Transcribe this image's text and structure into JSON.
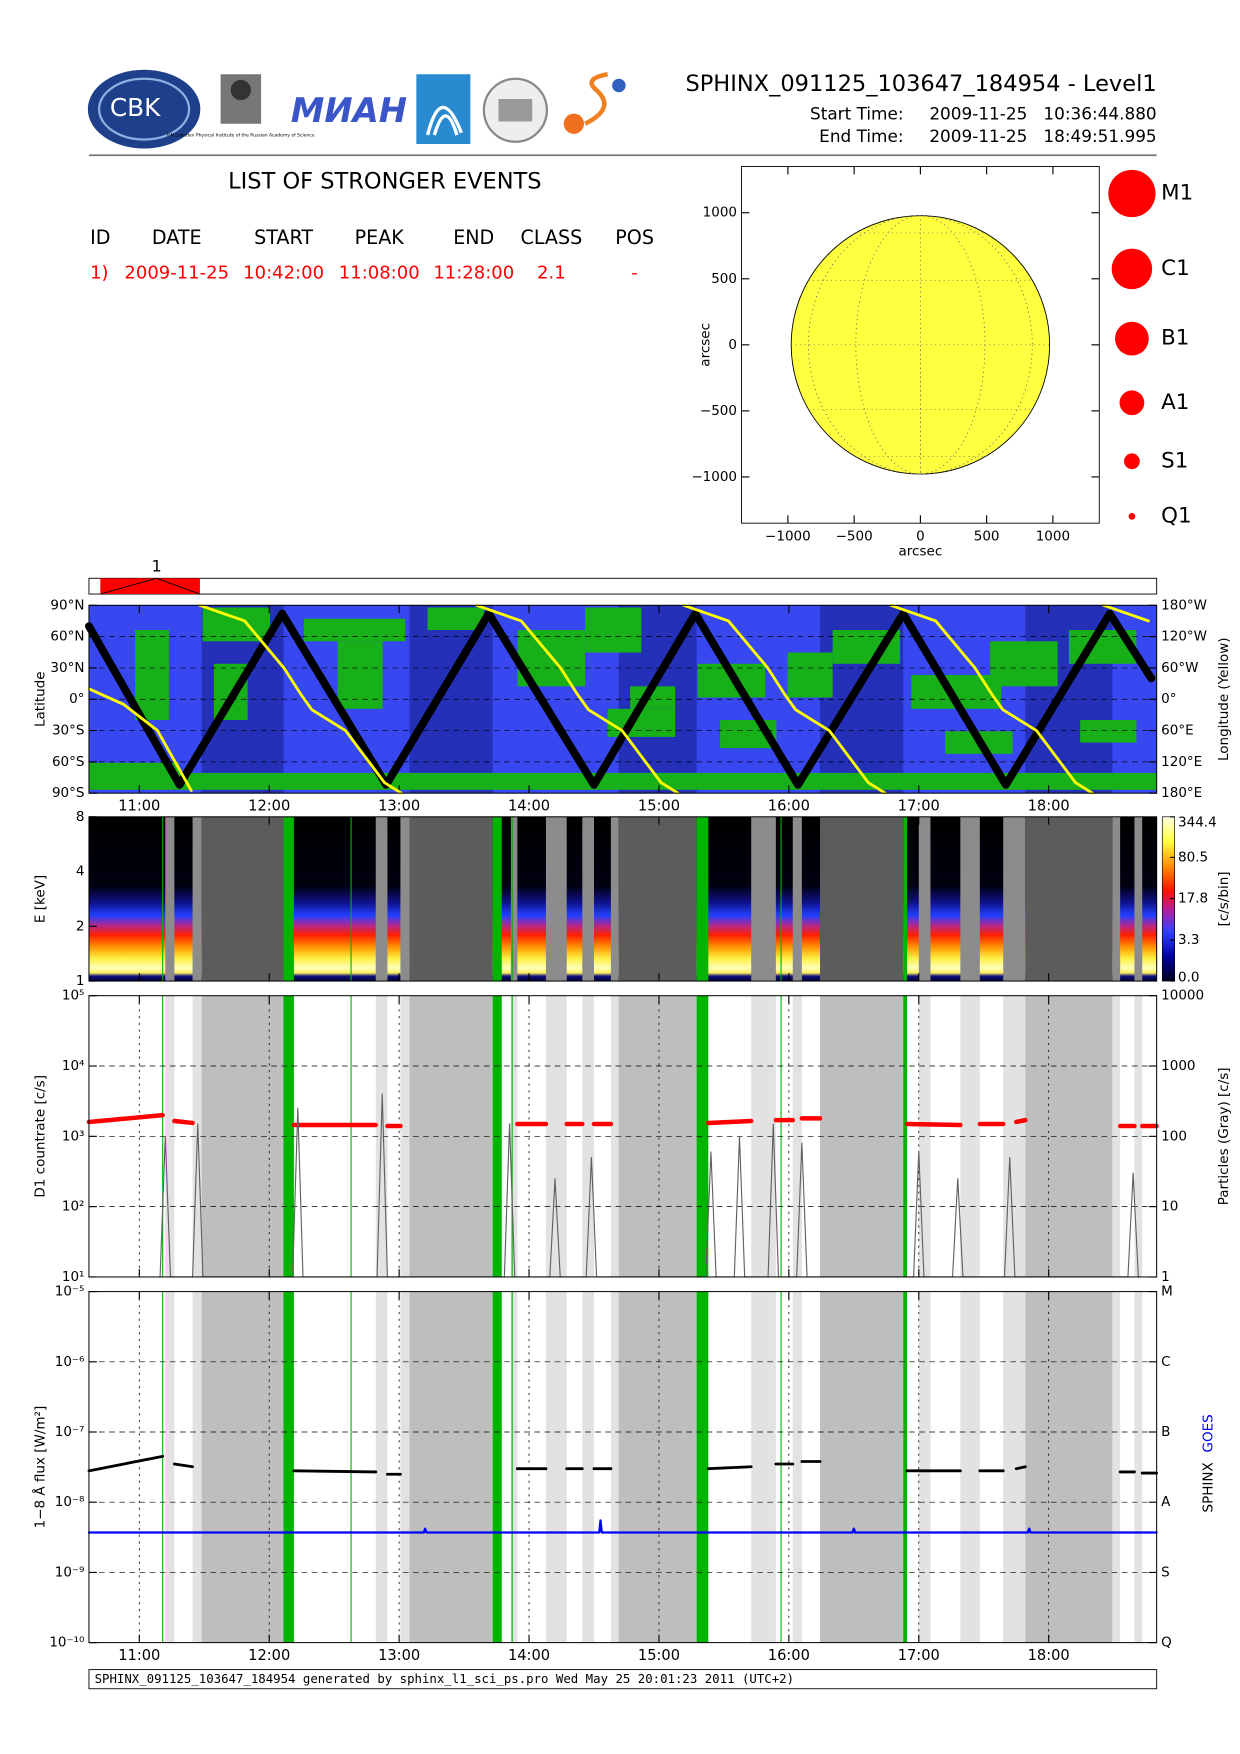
{
  "header": {
    "title": "SPHINX_091125_103647_184954 - Level1",
    "start_label": "Start Time:",
    "start_value": "2009-11-25   10:36:44.880",
    "end_label": "End Time:",
    "end_value": "2009-11-25   18:49:51.995"
  },
  "logos": {
    "cbk": "CBK",
    "lebedev": "P.N.Lebedev Physical Institute of the Russian Academy of Science",
    "mian": "МИАН"
  },
  "events": {
    "title": "LIST OF STRONGER EVENTS",
    "columns": [
      "ID",
      "DATE",
      "START",
      "PEAK",
      "END",
      "CLASS",
      "POS"
    ],
    "rows": [
      [
        "1)",
        "2009-11-25",
        "10:42:00",
        "11:08:00",
        "11:28:00",
        "2.1",
        "-"
      ]
    ],
    "color": "#ff0000"
  },
  "timeline": {
    "events": [
      {
        "label": "1",
        "start": 10.7,
        "peak": 11.1333,
        "end": 11.4667
      }
    ],
    "color": "#ff0000"
  },
  "time_coverage": {
    "light_gray": [
      [
        11.2,
        11.27
      ],
      [
        11.41,
        11.48
      ],
      [
        12.82,
        12.91
      ],
      [
        13.01,
        13.08
      ],
      [
        13.86,
        13.91
      ],
      [
        14.13,
        14.29
      ],
      [
        14.41,
        14.5
      ],
      [
        14.63,
        14.69
      ],
      [
        15.71,
        15.9
      ],
      [
        16.03,
        16.1
      ],
      [
        17.0,
        17.09
      ],
      [
        17.32,
        17.47
      ],
      [
        17.65,
        17.82
      ],
      [
        18.49,
        18.55
      ],
      [
        18.66,
        18.72
      ]
    ],
    "dark_gray": [
      [
        11.48,
        12.11
      ],
      [
        13.08,
        13.72
      ],
      [
        14.69,
        15.29
      ],
      [
        16.24,
        16.88
      ],
      [
        17.82,
        18.49
      ]
    ],
    "green": [
      [
        12.11,
        12.19
      ],
      [
        13.72,
        13.79
      ],
      [
        15.29,
        15.38
      ],
      [
        16.88,
        16.91
      ]
    ],
    "green_lines": [
      11.18,
      12.63,
      13.87,
      15.94
    ]
  },
  "chart_data": [
    {
      "type": "map",
      "xlabel": "arcsec",
      "ylabel": "arcsec",
      "xlim": [
        -1350,
        1350
      ],
      "ylim": [
        -1350,
        1350
      ],
      "xticks": [
        {
          "value": -1000,
          "label": "−1000"
        },
        {
          "value": -500,
          "label": "−500"
        },
        0,
        500,
        1000
      ],
      "yticks": [
        {
          "value": -1000,
          "label": "−1000"
        },
        {
          "value": -500,
          "label": "−500"
        },
        0,
        500,
        1000
      ],
      "sun_radius": 975,
      "color": "#ffff40",
      "classes": [
        "M1",
        "C1",
        "B1",
        "A1",
        "S1",
        "Q1"
      ],
      "class_color": "#ff0000"
    },
    {
      "type": "line",
      "ylabel": "Latitude",
      "y2label": "Longitude (Yellow)",
      "xlim": [
        10.6125,
        18.8311
      ],
      "xticks": [
        {
          "value": 11,
          "label": "11:00"
        },
        {
          "value": 12,
          "label": "12:00"
        },
        {
          "value": 13,
          "label": "13:00"
        },
        {
          "value": 14,
          "label": "14:00"
        },
        {
          "value": 15,
          "label": "15:00"
        },
        {
          "value": 16,
          "label": "16:00"
        },
        {
          "value": 17,
          "label": "17:00"
        },
        {
          "value": 18,
          "label": "18:00"
        }
      ],
      "ylim": [
        -90,
        90
      ],
      "yticks": [
        {
          "value": -90,
          "label": "90°S"
        },
        {
          "value": -60,
          "label": "60°S"
        },
        {
          "value": -30,
          "label": "30°S"
        },
        {
          "value": 0,
          "label": "0°"
        },
        {
          "value": 30,
          "label": "30°N"
        },
        {
          "value": 60,
          "label": "60°N"
        },
        {
          "value": 90,
          "label": "90°N"
        }
      ],
      "y2lim": [
        -180,
        180
      ],
      "y2ticks": [
        {
          "value": -180,
          "label": "180°E"
        },
        {
          "value": -120,
          "label": "120°E"
        },
        {
          "value": -60,
          "label": "60°E"
        },
        {
          "value": 0,
          "label": "0°"
        },
        {
          "value": 60,
          "label": "60°W"
        },
        {
          "value": 120,
          "label": "120°W"
        },
        {
          "value": 180,
          "label": "180°W"
        }
      ],
      "grid": true,
      "background": "#3848f0",
      "coverage_colors": {
        "dark_gray": "#2430b8"
      },
      "series": [
        {
          "color": "#000000",
          "x": [
            10.6125,
            11.31,
            12.1,
            12.9,
            13.69,
            14.5,
            15.28,
            16.07,
            16.88,
            17.67,
            18.47,
            18.79
          ],
          "values": [
            70,
            -82,
            82,
            -82,
            82,
            -82,
            82,
            -82,
            82,
            -82,
            82,
            20
          ]
        },
        {
          "color": "#ffff00",
          "axis": "y2",
          "x": [
            10.6125,
            10.88,
            11.14,
            11.4,
            11.43,
            11.466,
            11.811,
            12.113,
            12.242,
            12.328,
            12.587,
            12.888,
            13.018,
            13.3,
            13.595,
            13.94,
            14.242,
            14.371,
            14.457,
            14.716,
            15.017,
            15.147,
            15.17,
            15.19,
            15.535,
            15.837,
            15.966,
            16.052,
            16.311,
            16.612,
            16.742,
            16.76,
            16.785,
            17.13,
            17.432,
            17.561,
            17.647,
            17.906,
            18.207,
            18.337,
            18.38,
            18.423,
            18.768
          ],
          "values": [
            20,
            -10,
            -60,
            -175,
            null,
            180,
            150,
            60,
            10,
            -20,
            -60,
            -160,
            -180,
            null,
            180,
            150,
            60,
            10,
            -20,
            -60,
            -160,
            -180,
            null,
            180,
            150,
            60,
            10,
            -20,
            -60,
            -160,
            -180,
            null,
            180,
            150,
            60,
            10,
            -20,
            -60,
            -160,
            -180,
            null,
            180,
            150
          ]
        }
      ]
    },
    {
      "type": "spectrogram",
      "ylabel": "E [keV]",
      "log": true,
      "ylim": [
        1,
        8
      ],
      "yticks": [
        1,
        2,
        4,
        8
      ],
      "coverage_colors": {
        "light_gray": "#8c8c8c",
        "dark_gray": "#5c5c5c",
        "green": "#00b400",
        "green_lines": "#00b400"
      },
      "colorbar": {
        "label": "[c/s/bin]",
        "lim": [
          0,
          344.4
        ],
        "scale": "log1p",
        "ticks": [
          {
            "value": 0,
            "label": "0.0"
          },
          3.3,
          17.8,
          80.5,
          344.4
        ]
      }
    },
    {
      "type": "line",
      "ylabel": "D1 countrate [c/s]",
      "y2label": "Particles (Gray) [c/s]",
      "log": true,
      "ylim": [
        10,
        100000
      ],
      "yticks": [
        {
          "value": 10,
          "label": "10¹"
        },
        {
          "value": 100,
          "label": "10²"
        },
        {
          "value": 1000,
          "label": "10³"
        },
        {
          "value": 10000,
          "label": "10⁴"
        },
        {
          "value": 100000,
          "label": "10⁵"
        }
      ],
      "y2lim": [
        1,
        10000
      ],
      "y2ticks": [
        1,
        10,
        100,
        1000,
        10000
      ],
      "grid": true,
      "xgrid": true,
      "coverage_colors": {
        "light_gray": "#e2e2e2",
        "dark_gray": "#bebebe",
        "green": "#00b400",
        "green_lines": "#00b400"
      },
      "series": [
        {
          "color": "#ff0000",
          "x": [
            10.6125,
            11.18,
            11.22,
            11.27,
            11.41,
            11.8,
            12.19,
            12.82,
            12.86,
            12.91,
            13.01,
            13.5,
            13.91,
            14.13,
            14.2,
            14.29,
            14.41,
            14.45,
            14.5,
            14.63,
            15.0,
            15.38,
            15.71,
            15.8,
            15.9,
            16.03,
            16.06,
            16.1,
            16.24,
            16.6,
            16.91,
            17.32,
            17.4,
            17.47,
            17.65,
            17.7,
            17.75,
            17.82,
            18.2,
            18.55,
            18.66,
            18.69,
            18.72,
            18.83
          ],
          "values": [
            1600,
            2000,
            null,
            1650,
            1550,
            null,
            1450,
            1450,
            null,
            1400,
            1400,
            null,
            1500,
            1500,
            null,
            1500,
            1500,
            null,
            1500,
            1500,
            null,
            1550,
            1650,
            null,
            1700,
            1700,
            null,
            1800,
            1800,
            null,
            1500,
            1450,
            null,
            1500,
            1500,
            null,
            1600,
            1700,
            null,
            1400,
            1400,
            null,
            1400,
            1400
          ]
        },
        {
          "color": "#606060",
          "axis": "y2",
          "x": [
            11.16,
            11.2,
            11.24,
            11.41,
            11.45,
            11.49,
            12.18,
            12.22,
            12.26,
            12.83,
            12.87,
            12.91,
            13.81,
            13.85,
            13.89,
            14.16,
            14.2,
            14.24,
            14.44,
            14.48,
            14.52,
            15.36,
            15.4,
            15.44,
            15.58,
            15.62,
            15.66,
            15.84,
            15.88,
            15.92,
            16.06,
            16.1,
            16.14,
            16.96,
            17.0,
            17.04,
            17.26,
            17.3,
            17.34,
            17.66,
            17.7,
            17.74,
            18.61,
            18.65,
            18.69
          ],
          "values": [
            1,
            100,
            1,
            1,
            150,
            1,
            1,
            250,
            1,
            1,
            400,
            1,
            1,
            150,
            1,
            1,
            25,
            1,
            1,
            50,
            1,
            1,
            60,
            1,
            1,
            100,
            1,
            1,
            150,
            1,
            1,
            80,
            1,
            1,
            60,
            1,
            1,
            25,
            1,
            1,
            50,
            1,
            1,
            30,
            1
          ]
        }
      ]
    },
    {
      "type": "line",
      "ylabel": "1−8 Å flux [W/m²]",
      "log": true,
      "xlim": [
        10.6125,
        18.8311
      ],
      "xticks": [
        {
          "value": 11,
          "label": "11:00"
        },
        {
          "value": 12,
          "label": "12:00"
        },
        {
          "value": 13,
          "label": "13:00"
        },
        {
          "value": 14,
          "label": "14:00"
        },
        {
          "value": 15,
          "label": "15:00"
        },
        {
          "value": 16,
          "label": "16:00"
        },
        {
          "value": 17,
          "label": "17:00"
        },
        {
          "value": 18,
          "label": "18:00"
        }
      ],
      "ylim": [
        1e-10,
        1e-05
      ],
      "yticks": [
        {
          "value": 1e-10,
          "label": "10⁻¹⁰"
        },
        {
          "value": 1e-09,
          "label": "10⁻⁹"
        },
        {
          "value": 1e-08,
          "label": "10⁻⁸"
        },
        {
          "value": 1e-07,
          "label": "10⁻⁷"
        },
        {
          "value": 1e-06,
          "label": "10⁻⁶"
        },
        {
          "value": 1e-05,
          "label": "10⁻⁵"
        }
      ],
      "y2lim": [
        1e-10,
        1e-05
      ],
      "y2ticks": [
        {
          "value": 1e-10,
          "label": "Q"
        },
        {
          "value": 1e-09,
          "label": "S"
        },
        {
          "value": 1e-08,
          "label": "A"
        },
        {
          "value": 1e-07,
          "label": "B"
        },
        {
          "value": 1e-06,
          "label": "C"
        },
        {
          "value": 1e-05,
          "label": "M"
        }
      ],
      "grid": true,
      "xgrid": true,
      "coverage_colors": {
        "light_gray": "#e2e2e2",
        "dark_gray": "#bebebe",
        "green": "#00b400",
        "green_lines": "#00b400"
      },
      "series": [
        {
          "name": "SPHINX",
          "color": "#000000",
          "x": [
            10.6125,
            11.18,
            11.22,
            11.27,
            11.41,
            11.8,
            12.19,
            12.82,
            12.86,
            12.91,
            13.01,
            13.5,
            13.91,
            14.13,
            14.2,
            14.29,
            14.41,
            14.45,
            14.5,
            14.63,
            15.0,
            15.38,
            15.71,
            15.8,
            15.9,
            16.03,
            16.06,
            16.1,
            16.24,
            16.6,
            16.91,
            17.32,
            17.4,
            17.47,
            17.65,
            17.7,
            17.75,
            17.82,
            18.2,
            18.55,
            18.66,
            18.69,
            18.72,
            18.83
          ],
          "values": [
            2.8e-08,
            4.5e-08,
            null,
            3.5e-08,
            3.2e-08,
            null,
            2.8e-08,
            2.7e-08,
            null,
            2.5e-08,
            2.5e-08,
            null,
            3e-08,
            3e-08,
            null,
            3e-08,
            3e-08,
            null,
            3e-08,
            3e-08,
            null,
            3e-08,
            3.2e-08,
            null,
            3.5e-08,
            3.5e-08,
            null,
            3.8e-08,
            3.8e-08,
            null,
            2.8e-08,
            2.8e-08,
            null,
            2.8e-08,
            2.8e-08,
            null,
            3e-08,
            3.2e-08,
            null,
            2.7e-08,
            2.7e-08,
            null,
            2.6e-08,
            2.6e-08
          ]
        },
        {
          "name": "GOES",
          "color": "#0000ff",
          "x": [
            10.6125,
            13.19,
            13.2,
            13.21,
            14.54,
            14.55,
            14.56,
            16.49,
            16.5,
            16.51,
            17.84,
            17.85,
            17.86,
            18.8311
          ],
          "values": [
            3.7e-09,
            3.7e-09,
            4.2e-09,
            3.7e-09,
            3.7e-09,
            5.5e-09,
            3.7e-09,
            3.7e-09,
            4.2e-09,
            3.7e-09,
            3.7e-09,
            4.2e-09,
            3.7e-09,
            3.7e-09
          ]
        }
      ]
    }
  ],
  "footer": "SPHINX_091125_103647_184954 generated by sphinx_l1_sci_ps.pro Wed May 25 20:01:23 2011 (UTC+2)"
}
